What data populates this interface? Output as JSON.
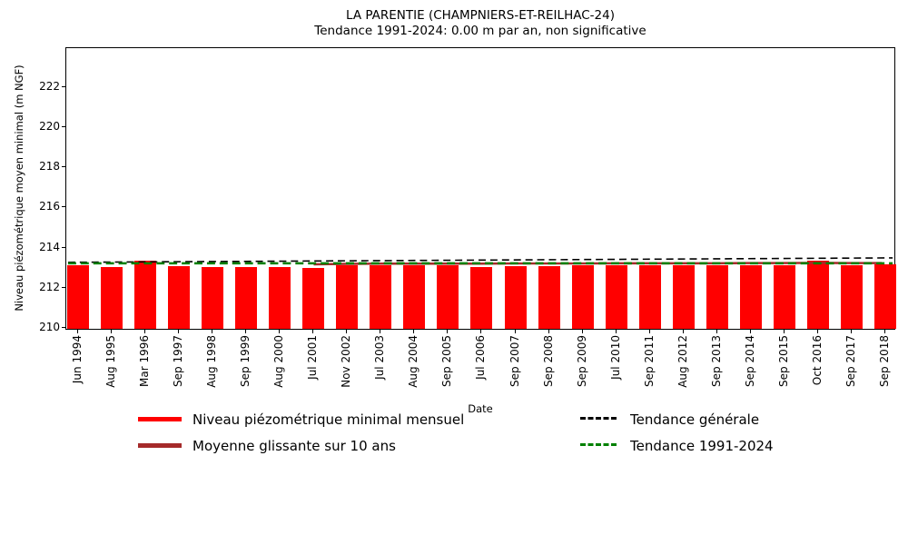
{
  "chart_data": {
    "type": "bar",
    "title": "LA PARENTIE (CHAMPNIERS-ET-REILHAC-24)",
    "subtitle": "Tendance 1991-2024: 0.00 m par an, non significative",
    "xlabel": "Date",
    "ylabel": "Niveau piézométrique moyen minimal (m NGF)",
    "ylim": [
      209.86,
      223.95
    ],
    "yticks": [
      210,
      212,
      214,
      216,
      218,
      220,
      222
    ],
    "grid": false,
    "legend_position": "below-chart, two columns, no frame",
    "categories": [
      "Jun 1994",
      "Aug 1995",
      "Mar 1996",
      "Sep 1997",
      "Aug 1998",
      "Sep 1999",
      "Aug 2000",
      "Jul 2001",
      "Nov 2002",
      "Jul 2003",
      "Aug 2004",
      "Sep 2005",
      "Jul 2006",
      "Sep 2007",
      "Sep 2008",
      "Sep 2009",
      "Jul 2010",
      "Sep 2011",
      "Aug 2012",
      "Sep 2013",
      "Sep 2014",
      "Sep 2015",
      "Oct 2016",
      "Sep 2017",
      "Sep 2018"
    ],
    "series": [
      {
        "name": "Niveau piézométrique minimal mensuel",
        "type": "bar",
        "color": "#ff0000",
        "values": [
          213.05,
          212.95,
          213.25,
          213.0,
          212.95,
          212.95,
          212.95,
          212.9,
          213.05,
          213.05,
          213.05,
          213.05,
          212.95,
          213.0,
          213.0,
          213.05,
          213.05,
          213.05,
          213.05,
          213.05,
          213.05,
          213.05,
          213.25,
          213.05,
          213.1
        ]
      },
      {
        "name": "Moyenne glissante sur 10 ans",
        "type": "line",
        "style": "solid",
        "color": "#a52a2a",
        "start_index": 7,
        "values": [
          213.1,
          213.12,
          213.13,
          213.13,
          213.13,
          213.13,
          213.14,
          213.14,
          213.14,
          213.15,
          213.15,
          213.15,
          213.15,
          213.16,
          213.16,
          213.17,
          213.16,
          213.16
        ]
      },
      {
        "name": "Tendance générale",
        "type": "trend-line",
        "style": "dashed",
        "color": "#000000",
        "endpoints": [
          213.2,
          213.42
        ]
      },
      {
        "name": "Tendance 1991-2024",
        "type": "trend-line",
        "style": "dashed",
        "color": "#008000",
        "endpoints": [
          213.15,
          213.15
        ]
      }
    ],
    "legend": {
      "entries": [
        {
          "label": "Niveau piézométrique minimal mensuel",
          "color": "#ff0000",
          "style": "solid"
        },
        {
          "label": "Moyenne glissante sur 10 ans",
          "color": "#a52a2a",
          "style": "solid"
        },
        {
          "label": "Tendance générale",
          "color": "#000000",
          "style": "dashed"
        },
        {
          "label": "Tendance 1991-2024",
          "color": "#008000",
          "style": "dashed"
        }
      ]
    }
  }
}
